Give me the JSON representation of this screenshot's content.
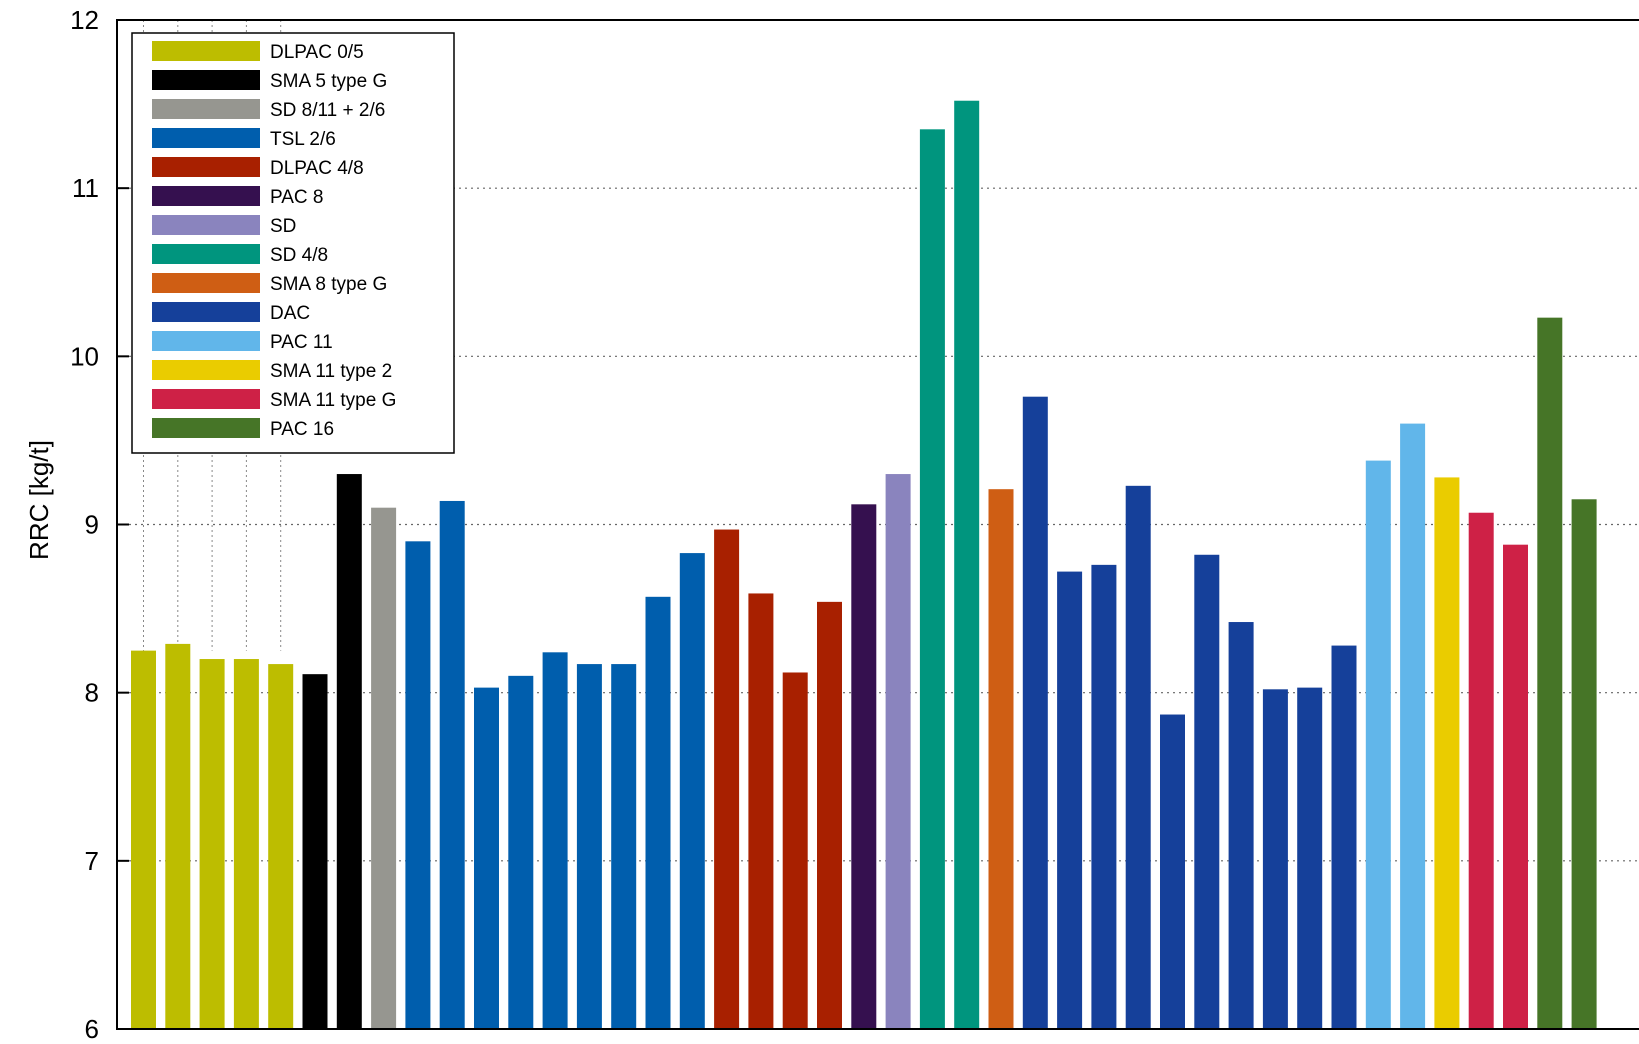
{
  "chart_data": {
    "type": "bar",
    "ylabel": "RRC [kg/t]",
    "ylim": [
      6,
      12
    ],
    "yticks": [
      6,
      7,
      8,
      9,
      10,
      11,
      12
    ],
    "grid": true,
    "legend_placement": "top-left",
    "legend": [
      {
        "name": "DLPAC 0/5",
        "color": "#BDBD00"
      },
      {
        "name": "SMA 5 type G",
        "color": "#000000"
      },
      {
        "name": "SD 8/11 + 2/6",
        "color": "#969690"
      },
      {
        "name": "TSL 2/6",
        "color": "#005EAD"
      },
      {
        "name": "DLPAC 4/8",
        "color": "#A82000"
      },
      {
        "name": "PAC 8",
        "color": "#35104F"
      },
      {
        "name": "SD",
        "color": "#8A84BE"
      },
      {
        "name": "SD 4/8",
        "color": "#00957E"
      },
      {
        "name": "SMA 8 type G",
        "color": "#CF5E14"
      },
      {
        "name": "DAC",
        "color": "#15409A"
      },
      {
        "name": "PAC 11",
        "color": "#61B6EA"
      },
      {
        "name": "SMA 11 type 2",
        "color": "#EACC00"
      },
      {
        "name": "SMA 11 type G",
        "color": "#CE2146"
      },
      {
        "name": "PAC 16",
        "color": "#467527"
      }
    ],
    "series": [
      {
        "legend_index": 0,
        "values": [
          8.25,
          8.29,
          8.2,
          8.2,
          8.17
        ]
      },
      {
        "legend_index": 1,
        "values": [
          8.11,
          9.3
        ]
      },
      {
        "legend_index": 2,
        "values": [
          9.1
        ]
      },
      {
        "legend_index": 3,
        "values": [
          8.9,
          9.14,
          8.03,
          8.1,
          8.24,
          8.17,
          8.17,
          8.57,
          8.83
        ]
      },
      {
        "legend_index": 4,
        "values": [
          8.97,
          8.59,
          8.12,
          8.54
        ]
      },
      {
        "legend_index": 5,
        "values": [
          9.12
        ]
      },
      {
        "legend_index": 6,
        "values": [
          9.3
        ]
      },
      {
        "legend_index": 7,
        "values": [
          11.35,
          11.52
        ]
      },
      {
        "legend_index": 8,
        "values": [
          9.21
        ]
      },
      {
        "legend_index": 9,
        "values": [
          9.76,
          8.72,
          8.76,
          9.23,
          7.87,
          8.82,
          8.42,
          8.02,
          8.03,
          8.28
        ]
      },
      {
        "legend_index": 10,
        "values": [
          9.38,
          9.6
        ]
      },
      {
        "legend_index": 11,
        "values": [
          9.28
        ]
      },
      {
        "legend_index": 12,
        "values": [
          9.07,
          8.88
        ]
      },
      {
        "legend_index": 13,
        "values": [
          10.23,
          9.15
        ]
      }
    ]
  }
}
